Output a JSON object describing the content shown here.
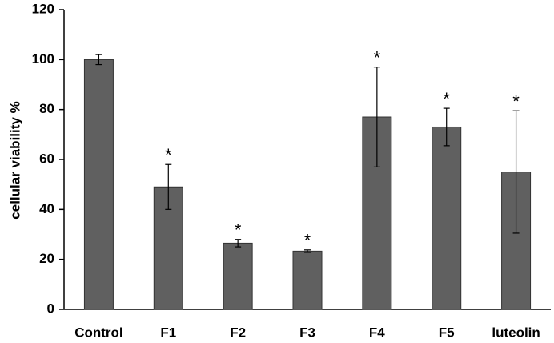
{
  "chart_data": {
    "type": "bar",
    "ylabel": "cellular viability %",
    "categories": [
      "Control",
      "F1",
      "F2",
      "F3",
      "F4",
      "F5",
      "luteolin"
    ],
    "values": [
      100,
      49,
      26.5,
      23.3,
      77,
      73,
      55
    ],
    "errors": [
      2,
      9,
      1.5,
      0.5,
      20,
      7.5,
      24.5
    ],
    "annotations": [
      null,
      "*",
      "*",
      "*",
      "*",
      "*",
      "*"
    ],
    "color": "#606060",
    "ylim": [
      0,
      120
    ],
    "yticks": [
      0,
      20,
      40,
      60,
      80,
      100,
      120
    ],
    "grid": false
  }
}
